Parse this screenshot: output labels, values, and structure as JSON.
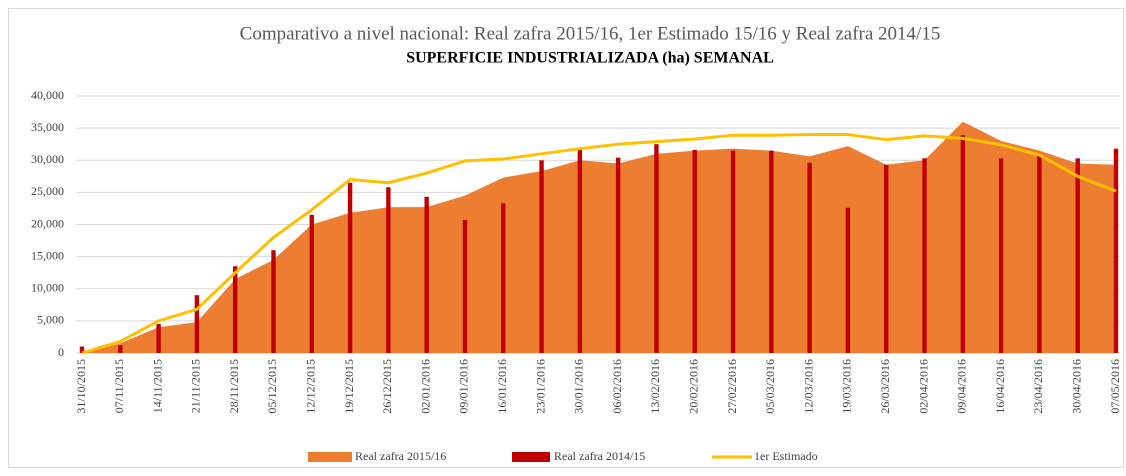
{
  "chart_data": {
    "type": "combo",
    "title": "Comparativo a nivel nacional: Real zafra 2015/16, 1er Estimado 15/16 y Real zafra 2014/15",
    "subtitle": "SUPERFICIE INDUSTRIALIZADA (ha) SEMANAL",
    "categories": [
      "31/10/2015",
      "07/11/2015",
      "14/11/2015",
      "21/11/2015",
      "28/11/2015",
      "05/12/2015",
      "12/12/2015",
      "19/12/2015",
      "26/12/2015",
      "02/01/2016",
      "09/01/2016",
      "16/01/2016",
      "23/01/2016",
      "30/01/2016",
      "06/02/2016",
      "13/02/2016",
      "20/02/2016",
      "27/02/2016",
      "05/03/2016",
      "12/03/2016",
      "19/03/2016",
      "26/03/2016",
      "02/04/2016",
      "09/04/2016",
      "16/04/2016",
      "23/04/2016",
      "30/04/2016",
      "07/05/2016"
    ],
    "series": [
      {
        "name": "Real zafra 2015/16",
        "type": "area",
        "color": "#ED7D31",
        "values": [
          0,
          1500,
          4000,
          4800,
          11500,
          14500,
          20000,
          21800,
          22700,
          22700,
          24500,
          27300,
          28300,
          30000,
          29500,
          31000,
          31500,
          31800,
          31500,
          30600,
          32200,
          29300,
          30000,
          36000,
          33000,
          31500,
          29500,
          29300
        ]
      },
      {
        "name": "Real zafra 2014/15",
        "type": "bar",
        "color": "#C00000",
        "values": [
          1000,
          1200,
          4500,
          9000,
          13500,
          16000,
          21500,
          26500,
          25800,
          24300,
          20700,
          23300,
          30000,
          31600,
          30400,
          32500,
          31600,
          31500,
          31500,
          29600,
          22600,
          29300,
          30300,
          33900,
          30300,
          30700,
          30300,
          31800
        ]
      },
      {
        "name": "1er Estimado",
        "type": "line",
        "color": "#FFC000",
        "values": [
          0,
          1800,
          5000,
          6800,
          12500,
          18000,
          22300,
          27000,
          26500,
          28000,
          29900,
          30200,
          31000,
          31800,
          32500,
          32900,
          33300,
          33900,
          33900,
          34000,
          34000,
          33200,
          33800,
          33400,
          32400,
          30800,
          27500,
          25200
        ]
      }
    ],
    "ylim": [
      0,
      40000
    ],
    "yticks": [
      0,
      {
        "value": 5000,
        "label": "5,000"
      },
      {
        "value": 10000,
        "label": "10,000"
      },
      {
        "value": 15000,
        "label": "15,000"
      },
      {
        "value": 20000,
        "label": "20,000"
      },
      {
        "value": 25000,
        "label": "25,000"
      },
      {
        "value": 30000,
        "label": "30,000"
      },
      {
        "value": 35000,
        "label": "35,000"
      },
      {
        "value": 40000,
        "label": "40,000"
      }
    ],
    "grid": true,
    "legend": "bottom"
  }
}
